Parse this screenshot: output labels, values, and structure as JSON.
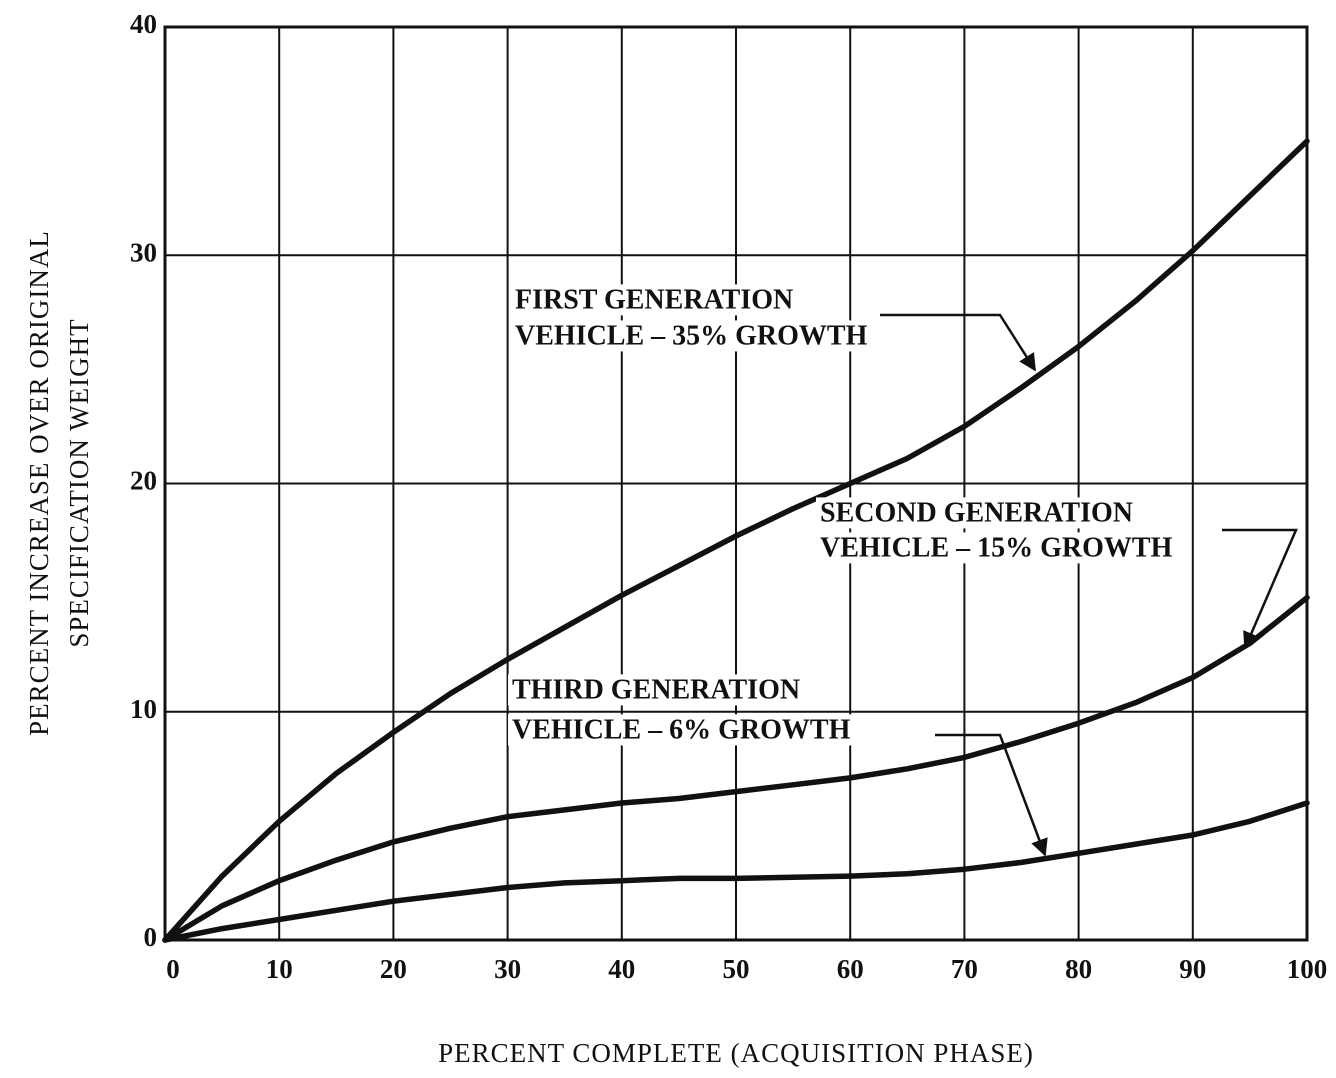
{
  "chart_data": {
    "type": "line",
    "xlabel": "PERCENT COMPLETE (ACQUISITION PHASE)",
    "ylabel": [
      "PERCENT INCREASE OVER ORIGINAL",
      "SPECIFICATION WEIGHT"
    ],
    "x": [
      0,
      5,
      10,
      15,
      20,
      25,
      30,
      35,
      40,
      45,
      50,
      55,
      60,
      65,
      70,
      75,
      80,
      85,
      90,
      95,
      100
    ],
    "series": [
      {
        "color": "#111111",
        "values": [
          0,
          2.8,
          5.2,
          7.3,
          9.1,
          10.8,
          12.3,
          13.7,
          15.1,
          16.4,
          17.7,
          18.9,
          20.0,
          21.1,
          22.5,
          24.2,
          26.0,
          28.0,
          30.2,
          32.6,
          35.0
        ]
      },
      {
        "color": "#111111",
        "values": [
          0,
          1.5,
          2.6,
          3.5,
          4.3,
          4.9,
          5.4,
          5.7,
          6.0,
          6.2,
          6.5,
          6.8,
          7.1,
          7.5,
          8.0,
          8.7,
          9.5,
          10.4,
          11.5,
          13.0,
          15.0
        ]
      },
      {
        "color": "#111111",
        "values": [
          0,
          0.5,
          0.9,
          1.3,
          1.7,
          2.0,
          2.3,
          2.5,
          2.6,
          2.7,
          2.7,
          2.75,
          2.8,
          2.9,
          3.1,
          3.4,
          3.8,
          4.2,
          4.6,
          5.2,
          6.0
        ]
      }
    ],
    "annotations": [
      [
        "FIRST GENERATION",
        "VEHICLE – 35% GROWTH"
      ],
      [
        "SECOND GENERATION",
        "VEHICLE – 15% GROWTH"
      ],
      [
        "THIRD GENERATION",
        "VEHICLE – 6% GROWTH"
      ]
    ],
    "xlim": [
      0,
      100
    ],
    "xticks": [
      0,
      10,
      20,
      30,
      40,
      50,
      60,
      70,
      80,
      90,
      100
    ],
    "ylim": [
      0,
      40
    ],
    "yticks": [
      0,
      10,
      20,
      30,
      40
    ],
    "grid": true
  }
}
